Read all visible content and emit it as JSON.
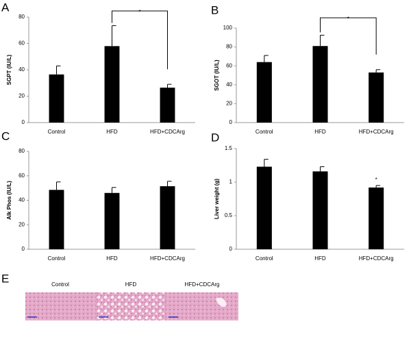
{
  "chart_data": [
    {
      "type": "bar",
      "panel": "A",
      "y_label": "SGPT (IU/L)",
      "categories": [
        "Control",
        "HFD",
        "HFD+CDCArg"
      ],
      "values": [
        36.5,
        58,
        26.5
      ],
      "errors": [
        6.5,
        15.5,
        2.5
      ],
      "color": "#000000",
      "ylim": [
        0,
        80
      ],
      "yticks": [
        0,
        20,
        40,
        60,
        80
      ],
      "annotation": "*"
    },
    {
      "type": "bar",
      "panel": "B",
      "y_label": "SGOT (IU/L)",
      "categories": [
        "Control",
        "HFD",
        "HFD+CDCArg"
      ],
      "values": [
        64,
        81,
        53
      ],
      "errors": [
        7,
        11.5,
        3
      ],
      "color": "#000000",
      "ylim": [
        0,
        100
      ],
      "yticks": [
        0,
        20,
        40,
        60,
        80,
        100
      ],
      "annotation": "*"
    },
    {
      "type": "bar",
      "panel": "C",
      "y_label": "Alk Phos (IU/L)",
      "categories": [
        "Control",
        "HFD",
        "HFD+CDCArg"
      ],
      "values": [
        48.5,
        46,
        51.5
      ],
      "errors": [
        6.5,
        4.5,
        4
      ],
      "color": "#000000",
      "ylim": [
        0,
        80
      ],
      "yticks": [
        0,
        20,
        40,
        60,
        80
      ]
    },
    {
      "type": "bar",
      "panel": "D",
      "y_label": "Liver weight (g)",
      "categories": [
        "Control",
        "HFD",
        "HFD+CDCArg"
      ],
      "values": [
        1.23,
        1.16,
        0.92
      ],
      "errors": [
        0.11,
        0.07,
        0.03
      ],
      "color": "#000000",
      "ylim": [
        0,
        1.5
      ],
      "yticks": [
        0,
        0.5,
        1,
        1.5
      ],
      "annotation": "*"
    }
  ],
  "panel_e": {
    "panel": "E",
    "labels": [
      "Control",
      "HFD",
      "HFD+CDCArg"
    ]
  }
}
